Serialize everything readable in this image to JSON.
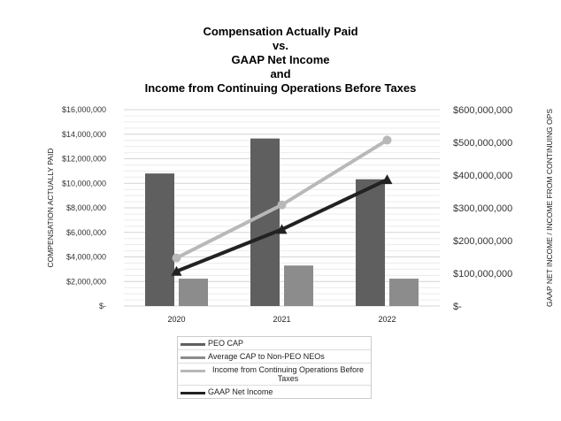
{
  "chart_data": {
    "type": "bar+line",
    "title_lines": [
      "Compensation Actually Paid",
      "vs.",
      "GAAP Net Income",
      "and",
      "Income from Continuing Operations Before Taxes"
    ],
    "categories": [
      "2020",
      "2021",
      "2022"
    ],
    "ylabel_left": "COMPENSATION ACTUALLY PAID",
    "ylabel_right": "GAAP NET INCOME / INCOME FROM CONTINUING OPS",
    "ylim_left": [
      0,
      16000000
    ],
    "ylim_right": [
      0,
      600000000
    ],
    "left_ticks": [
      "$-",
      "$2,000,000",
      "$4,000,000",
      "$6,000,000",
      "$8,000,000",
      "$10,000,000",
      "$12,000,000",
      "$14,000,000",
      "$16,000,000"
    ],
    "right_ticks": [
      "$-",
      "$100,000,000",
      "$200,000,000",
      "$300,000,000",
      "$400,000,000",
      "$500,000,000",
      "$600,000,000"
    ],
    "grid": true,
    "legend_placement": "bottom",
    "series": [
      {
        "name": "PEO CAP",
        "type": "bar",
        "axis": "left",
        "color": "#5f5f5f",
        "values": [
          10800000,
          13650000,
          10330000
        ]
      },
      {
        "name": "Average CAP to Non-PEO NEOs",
        "type": "bar",
        "axis": "left",
        "color": "#8c8c8c",
        "values": [
          2230000,
          3300000,
          2230000
        ]
      },
      {
        "name": "Income from Continuing Operations Before Taxes",
        "type": "line",
        "marker": "circle",
        "axis": "right",
        "color": "#b8b8b8",
        "values": [
          147000000,
          309000000,
          507000000
        ]
      },
      {
        "name": "GAAP Net Income",
        "type": "line",
        "marker": "triangle",
        "axis": "right",
        "color": "#222222",
        "values": [
          106000000,
          234000000,
          386000000
        ]
      }
    ]
  }
}
